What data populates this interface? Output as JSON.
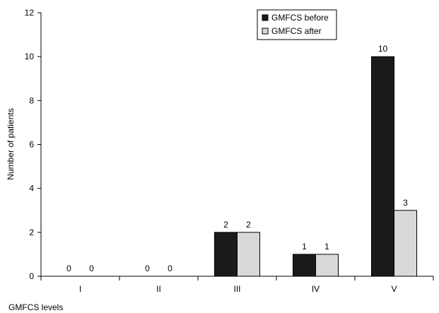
{
  "chart_data": {
    "type": "bar",
    "title": "",
    "xlabel": "GMFCS levels",
    "ylabel": "Number of patients",
    "categories": [
      "I",
      "II",
      "III",
      "IV",
      "V"
    ],
    "ylim": [
      0,
      12
    ],
    "yticks": [
      0,
      2,
      4,
      6,
      8,
      10,
      12
    ],
    "grid": false,
    "legend_position": "top-right",
    "series": [
      {
        "name": "GMFCS before",
        "values": [
          0,
          0,
          2,
          1,
          10
        ],
        "color": "#1a1a1a"
      },
      {
        "name": "GMFCS after",
        "values": [
          0,
          0,
          2,
          1,
          3
        ],
        "color": "#d9d9d9"
      }
    ]
  }
}
